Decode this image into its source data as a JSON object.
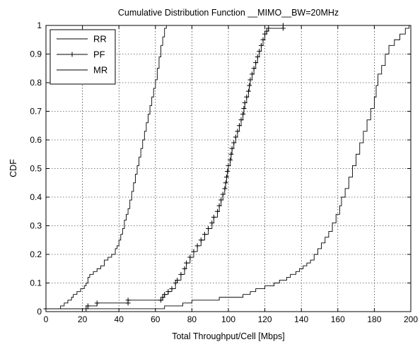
{
  "chart_data": {
    "type": "line",
    "title": "Cumulative Distribution Function __MIMO__BW=20MHz",
    "xlabel": "Total Throughput/Cell [Mbps]",
    "ylabel": "CDF",
    "xlim": [
      0,
      200
    ],
    "ylim": [
      0,
      1
    ],
    "xticks": [
      0,
      20,
      40,
      60,
      80,
      100,
      120,
      140,
      160,
      180,
      200
    ],
    "yticks": [
      0,
      0.1,
      0.2,
      0.3,
      0.4,
      0.5,
      0.6,
      0.7,
      0.8,
      0.9,
      1
    ],
    "xtick_labels": [
      "0",
      "20",
      "40",
      "60",
      "80",
      "100",
      "120",
      "140",
      "160",
      "180",
      "200"
    ],
    "ytick_labels": [
      "0",
      "0.1",
      "0.2",
      "0.3",
      "0.4",
      "0.5",
      "0.6",
      "0.7",
      "0.8",
      "0.9",
      "1"
    ],
    "grid": true,
    "legend_position": "top-left",
    "line_color": "#000000",
    "series": [
      {
        "name": "RR",
        "marker": "none",
        "points": [
          [
            0,
            0
          ],
          [
            0,
            0.01
          ],
          [
            7,
            0.01
          ],
          [
            8,
            0.02
          ],
          [
            10,
            0.03
          ],
          [
            12,
            0.04
          ],
          [
            14,
            0.05
          ],
          [
            15,
            0.06
          ],
          [
            17,
            0.07
          ],
          [
            19,
            0.08
          ],
          [
            21,
            0.09
          ],
          [
            22,
            0.1
          ],
          [
            23,
            0.12
          ],
          [
            24,
            0.13
          ],
          [
            26,
            0.14
          ],
          [
            28,
            0.15
          ],
          [
            30,
            0.16
          ],
          [
            32,
            0.18
          ],
          [
            34,
            0.19
          ],
          [
            36,
            0.2
          ],
          [
            38,
            0.22
          ],
          [
            39,
            0.23
          ],
          [
            40,
            0.25
          ],
          [
            41,
            0.27
          ],
          [
            42,
            0.29
          ],
          [
            43,
            0.32
          ],
          [
            44,
            0.34
          ],
          [
            45,
            0.36
          ],
          [
            46,
            0.39
          ],
          [
            47,
            0.42
          ],
          [
            48,
            0.45
          ],
          [
            49,
            0.48
          ],
          [
            50,
            0.51
          ],
          [
            51,
            0.54
          ],
          [
            52,
            0.57
          ],
          [
            53,
            0.6
          ],
          [
            54,
            0.63
          ],
          [
            55,
            0.66
          ],
          [
            56,
            0.69
          ],
          [
            57,
            0.72
          ],
          [
            58,
            0.75
          ],
          [
            59,
            0.78
          ],
          [
            60,
            0.81
          ],
          [
            61,
            0.85
          ],
          [
            62,
            0.89
          ],
          [
            63,
            0.93
          ],
          [
            64,
            0.96
          ],
          [
            65,
            0.99
          ],
          [
            66,
            1.0
          ]
        ]
      },
      {
        "name": "PF",
        "marker": "+",
        "points": [
          [
            0,
            0
          ],
          [
            0,
            0.01
          ],
          [
            22,
            0.01
          ],
          [
            23,
            0.02
          ],
          [
            28,
            0.03
          ],
          [
            45,
            0.03
          ],
          [
            45,
            0.04
          ],
          [
            63,
            0.04
          ],
          [
            64,
            0.05
          ],
          [
            65,
            0.06
          ],
          [
            67,
            0.07
          ],
          [
            69,
            0.08
          ],
          [
            71,
            0.1
          ],
          [
            72,
            0.11
          ],
          [
            74,
            0.13
          ],
          [
            76,
            0.15
          ],
          [
            77,
            0.17
          ],
          [
            79,
            0.19
          ],
          [
            81,
            0.21
          ],
          [
            83,
            0.23
          ],
          [
            85,
            0.25
          ],
          [
            87,
            0.27
          ],
          [
            89,
            0.29
          ],
          [
            91,
            0.31
          ],
          [
            92,
            0.33
          ],
          [
            94,
            0.35
          ],
          [
            95,
            0.37
          ],
          [
            96,
            0.39
          ],
          [
            97,
            0.41
          ],
          [
            98,
            0.43
          ],
          [
            98.5,
            0.45
          ],
          [
            99,
            0.47
          ],
          [
            99.5,
            0.49
          ],
          [
            100,
            0.51
          ],
          [
            101,
            0.53
          ],
          [
            101.5,
            0.55
          ],
          [
            102,
            0.57
          ],
          [
            103,
            0.59
          ],
          [
            104,
            0.61
          ],
          [
            105,
            0.63
          ],
          [
            106,
            0.65
          ],
          [
            107,
            0.67
          ],
          [
            108,
            0.69
          ],
          [
            108.5,
            0.71
          ],
          [
            109,
            0.73
          ],
          [
            110,
            0.75
          ],
          [
            111,
            0.77
          ],
          [
            111.5,
            0.79
          ],
          [
            112,
            0.81
          ],
          [
            113,
            0.83
          ],
          [
            114,
            0.85
          ],
          [
            115,
            0.87
          ],
          [
            116,
            0.89
          ],
          [
            117,
            0.91
          ],
          [
            118,
            0.93
          ],
          [
            119,
            0.95
          ],
          [
            120,
            0.97
          ],
          [
            121,
            0.98
          ],
          [
            122,
            0.99
          ],
          [
            130,
            0.99
          ],
          [
            130,
            1.0
          ]
        ]
      },
      {
        "name": "MR",
        "marker": "none",
        "points": [
          [
            0,
            0
          ],
          [
            0,
            0.01
          ],
          [
            60,
            0.01
          ],
          [
            65,
            0.02
          ],
          [
            75,
            0.03
          ],
          [
            80,
            0.04
          ],
          [
            95,
            0.05
          ],
          [
            108,
            0.06
          ],
          [
            112,
            0.07
          ],
          [
            115,
            0.08
          ],
          [
            120,
            0.09
          ],
          [
            125,
            0.1
          ],
          [
            128,
            0.11
          ],
          [
            132,
            0.12
          ],
          [
            134,
            0.13
          ],
          [
            137,
            0.14
          ],
          [
            139,
            0.15
          ],
          [
            141,
            0.16
          ],
          [
            143,
            0.17
          ],
          [
            145,
            0.18
          ],
          [
            147,
            0.2
          ],
          [
            149,
            0.22
          ],
          [
            151,
            0.24
          ],
          [
            153,
            0.26
          ],
          [
            155,
            0.28
          ],
          [
            157,
            0.31
          ],
          [
            159,
            0.34
          ],
          [
            161,
            0.37
          ],
          [
            162,
            0.4
          ],
          [
            164,
            0.43
          ],
          [
            166,
            0.47
          ],
          [
            168,
            0.51
          ],
          [
            170,
            0.55
          ],
          [
            172,
            0.59
          ],
          [
            174,
            0.63
          ],
          [
            176,
            0.67
          ],
          [
            178,
            0.71
          ],
          [
            180,
            0.75
          ],
          [
            181,
            0.79
          ],
          [
            182,
            0.83
          ],
          [
            184,
            0.86
          ],
          [
            186,
            0.9
          ],
          [
            188,
            0.93
          ],
          [
            191,
            0.95
          ],
          [
            194,
            0.97
          ],
          [
            197,
            0.99
          ],
          [
            199,
            1.0
          ]
        ]
      }
    ]
  }
}
